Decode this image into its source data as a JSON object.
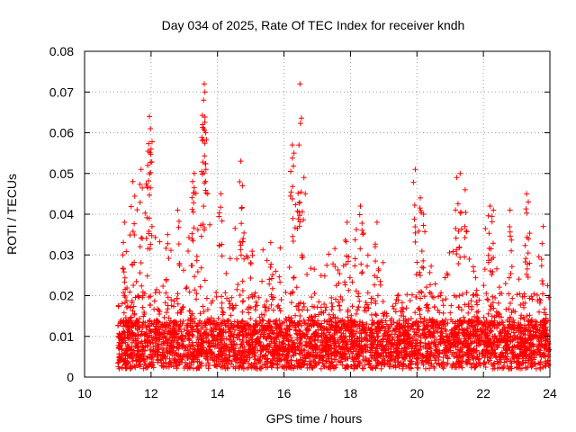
{
  "chart_data": {
    "type": "scatter",
    "title": "Day 034 of 2025, Rate Of TEC Index for receiver kndh",
    "xlabel": "GPS time / hours",
    "ylabel": "ROTI / TECUs",
    "xlim": [
      10,
      24
    ],
    "ylim": [
      0,
      0.08
    ],
    "x_ticks": [
      10,
      12,
      14,
      16,
      18,
      20,
      22,
      24
    ],
    "x_tick_labels": [
      "10",
      "12",
      "14",
      "16",
      "18",
      "20",
      "22",
      "24"
    ],
    "y_ticks": [
      0,
      0.01,
      0.02,
      0.03,
      0.04,
      0.05,
      0.06,
      0.07,
      0.08
    ],
    "y_tick_labels": [
      "0",
      "0.01",
      "0.02",
      "0.03",
      "0.04",
      "0.05",
      "0.06",
      "0.07",
      "0.08"
    ],
    "grid": true,
    "legend": "none",
    "marker": "plus",
    "color": "#ff0000",
    "x_range_of_data": [
      11.0,
      24.0
    ],
    "envelope": {
      "x": [
        11.0,
        11.3,
        11.6,
        11.9,
        12.2,
        12.5,
        12.8,
        13.1,
        13.4,
        13.7,
        14.0,
        14.3,
        14.6,
        14.9,
        15.2,
        15.5,
        15.8,
        16.1,
        16.4,
        16.7,
        17.0,
        17.3,
        17.6,
        17.9,
        18.2,
        18.5,
        18.8,
        19.1,
        19.4,
        19.7,
        20.0,
        20.3,
        20.6,
        20.9,
        21.2,
        21.5,
        21.8,
        22.1,
        22.4,
        22.7,
        23.0,
        23.3,
        23.6,
        23.9,
        24.0
      ],
      "typical_max": [
        0.03,
        0.04,
        0.042,
        0.045,
        0.035,
        0.033,
        0.03,
        0.035,
        0.045,
        0.04,
        0.035,
        0.03,
        0.04,
        0.032,
        0.03,
        0.033,
        0.03,
        0.04,
        0.04,
        0.03,
        0.028,
        0.03,
        0.035,
        0.03,
        0.04,
        0.035,
        0.03,
        0.028,
        0.03,
        0.028,
        0.038,
        0.03,
        0.028,
        0.032,
        0.045,
        0.035,
        0.03,
        0.038,
        0.03,
        0.028,
        0.03,
        0.035,
        0.032,
        0.03,
        0.028
      ]
    },
    "peaks": [
      {
        "x": 11.2,
        "y": 0.038
      },
      {
        "x": 11.45,
        "y": 0.048
      },
      {
        "x": 11.7,
        "y": 0.051
      },
      {
        "x": 11.9,
        "y": 0.052
      },
      {
        "x": 11.95,
        "y": 0.064
      },
      {
        "x": 11.98,
        "y": 0.061
      },
      {
        "x": 12.0,
        "y": 0.056
      },
      {
        "x": 12.5,
        "y": 0.035
      },
      {
        "x": 12.8,
        "y": 0.041
      },
      {
        "x": 13.25,
        "y": 0.048
      },
      {
        "x": 13.3,
        "y": 0.05
      },
      {
        "x": 13.55,
        "y": 0.062
      },
      {
        "x": 13.58,
        "y": 0.068
      },
      {
        "x": 13.6,
        "y": 0.072
      },
      {
        "x": 13.62,
        "y": 0.07
      },
      {
        "x": 13.65,
        "y": 0.051
      },
      {
        "x": 14.1,
        "y": 0.045
      },
      {
        "x": 14.7,
        "y": 0.053
      },
      {
        "x": 14.75,
        "y": 0.047
      },
      {
        "x": 15.6,
        "y": 0.033
      },
      {
        "x": 16.25,
        "y": 0.057
      },
      {
        "x": 16.3,
        "y": 0.055
      },
      {
        "x": 16.45,
        "y": 0.057
      },
      {
        "x": 16.48,
        "y": 0.072
      },
      {
        "x": 16.6,
        "y": 0.049
      },
      {
        "x": 17.9,
        "y": 0.038
      },
      {
        "x": 18.3,
        "y": 0.042
      },
      {
        "x": 18.8,
        "y": 0.038
      },
      {
        "x": 19.95,
        "y": 0.051
      },
      {
        "x": 20.1,
        "y": 0.044
      },
      {
        "x": 20.2,
        "y": 0.04
      },
      {
        "x": 21.2,
        "y": 0.049
      },
      {
        "x": 21.3,
        "y": 0.05
      },
      {
        "x": 21.45,
        "y": 0.046
      },
      {
        "x": 22.2,
        "y": 0.042
      },
      {
        "x": 22.3,
        "y": 0.041
      },
      {
        "x": 22.8,
        "y": 0.041
      },
      {
        "x": 23.3,
        "y": 0.045
      },
      {
        "x": 23.35,
        "y": 0.043
      },
      {
        "x": 23.8,
        "y": 0.037
      }
    ]
  }
}
